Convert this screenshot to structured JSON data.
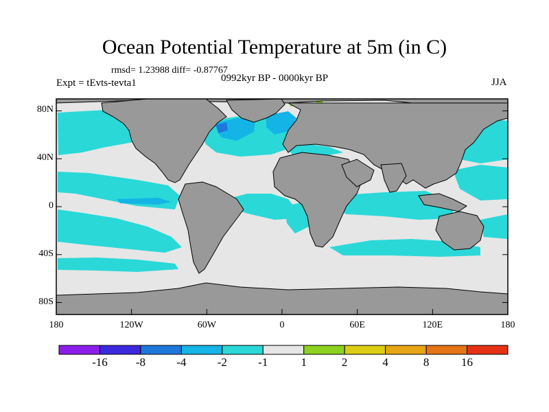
{
  "title": "Ocean Potential Temperature at 5m (in C)",
  "stats": "rmsd= 1.23988 diff= -0.87767",
  "period": "0992kyr BP - 0000kyr BP",
  "experiment": "Expt = tEvts-tevta1",
  "season": "JJA",
  "map": {
    "lon_range": [
      -180,
      180
    ],
    "lat_range": [
      -90,
      90
    ],
    "lat_ticks": [
      {
        "value": 80,
        "label": "80N"
      },
      {
        "value": 40,
        "label": "40N"
      },
      {
        "value": 0,
        "label": "0"
      },
      {
        "value": -40,
        "label": "40S"
      },
      {
        "value": -80,
        "label": "80S"
      }
    ],
    "lon_ticks": [
      {
        "value": -180,
        "label": "180"
      },
      {
        "value": -120,
        "label": "120W"
      },
      {
        "value": -60,
        "label": "60W"
      },
      {
        "value": 0,
        "label": "0"
      },
      {
        "value": 60,
        "label": "60E"
      },
      {
        "value": 120,
        "label": "120E"
      },
      {
        "value": 180,
        "label": "180"
      }
    ],
    "colors": {
      "land": "#999999",
      "near_zero": "#e6e6e6",
      "cool_1": "#2ad8d8",
      "cool_2": "#14b4e6",
      "cool_3": "#1e78dc",
      "warm_1": "#8cd21e"
    }
  },
  "colorbar": {
    "colors": [
      "#8c1eec",
      "#3c28dc",
      "#1e78dc",
      "#14b4e6",
      "#2ad8d8",
      "#e6e6e6",
      "#8cd21e",
      "#dccd14",
      "#e6a514",
      "#e67314",
      "#e63214"
    ],
    "labels": [
      "-16",
      "-8",
      "-4",
      "-2",
      "-1",
      "1",
      "2",
      "4",
      "8",
      "16"
    ]
  }
}
